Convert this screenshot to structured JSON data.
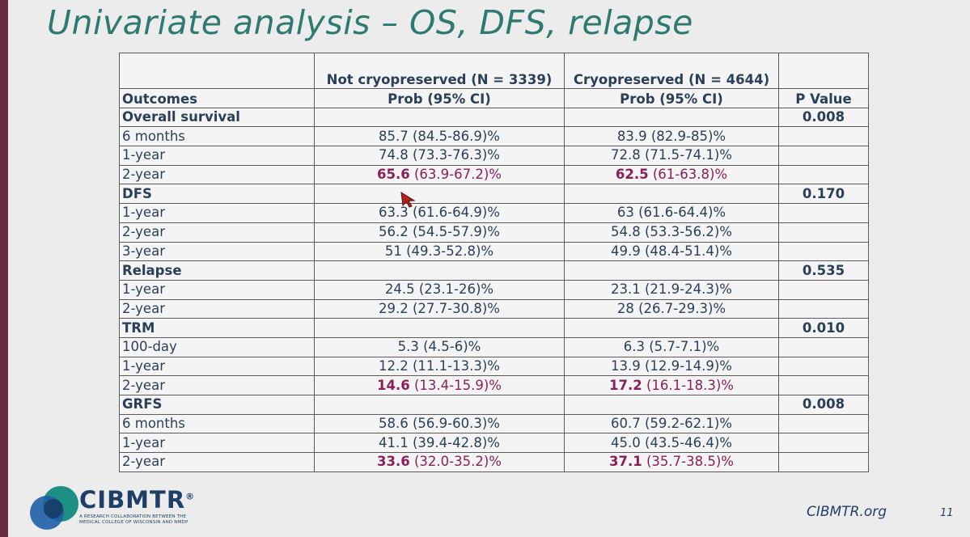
{
  "slide": {
    "title": "Univariate analysis – OS, DFS, relapse",
    "page_number": "11",
    "footer_site": "CIBMTR.org",
    "logo": {
      "brand": "CIBMTR",
      "registered_mark": "®",
      "subtitle": "A RESEARCH COLLABORATION BETWEEN THE MEDICAL COLLEGE OF WISCONSIN AND NMDP"
    }
  },
  "table": {
    "group_headers": [
      "",
      "Not cryopreserved (N = 3339)",
      "Cryopreserved (N = 4644)",
      ""
    ],
    "headers": [
      "Outcomes",
      "Prob (95% CI)",
      "Prob (95% CI)",
      "P Value"
    ],
    "sections": [
      {
        "name": "Overall survival",
        "p_value": "0.008",
        "rows": [
          {
            "label": "6 months",
            "not_cryo": {
              "bold": "",
              "rest": "85.7 (84.5-86.9)%"
            },
            "cryo": {
              "bold": "",
              "rest": "83.9 (82.9-85)%"
            }
          },
          {
            "label": "1-year",
            "not_cryo": {
              "bold": "",
              "rest": "74.8 (73.3-76.3)%"
            },
            "cryo": {
              "bold": "",
              "rest": "72.8 (71.5-74.1)%"
            }
          },
          {
            "label": "2-year",
            "highlight": true,
            "not_cryo": {
              "bold": "65.6",
              "rest": " (63.9-67.2)%"
            },
            "cryo": {
              "bold": "62.5",
              "rest": " (61-63.8)%"
            }
          }
        ]
      },
      {
        "name": "DFS",
        "p_value": "0.170",
        "rows": [
          {
            "label": "1-year",
            "not_cryo": {
              "bold": "",
              "rest": "63.3 (61.6-64.9)%"
            },
            "cryo": {
              "bold": "",
              "rest": "63 (61.6-64.4)%"
            }
          },
          {
            "label": "2-year",
            "not_cryo": {
              "bold": "",
              "rest": "56.2 (54.5-57.9)%"
            },
            "cryo": {
              "bold": "",
              "rest": "54.8 (53.3-56.2)%"
            }
          },
          {
            "label": "3-year",
            "not_cryo": {
              "bold": "",
              "rest": "51 (49.3-52.8)%"
            },
            "cryo": {
              "bold": "",
              "rest": "49.9 (48.4-51.4)%"
            }
          }
        ]
      },
      {
        "name": "Relapse",
        "p_value": "0.535",
        "rows": [
          {
            "label": "1-year",
            "not_cryo": {
              "bold": "",
              "rest": "24.5 (23.1-26)%"
            },
            "cryo": {
              "bold": "",
              "rest": "23.1 (21.9-24.3)%"
            }
          },
          {
            "label": "2-year",
            "not_cryo": {
              "bold": "",
              "rest": "29.2 (27.7-30.8)%"
            },
            "cryo": {
              "bold": "",
              "rest": "28 (26.7-29.3)%"
            }
          }
        ]
      },
      {
        "name": "TRM",
        "p_value": "0.010",
        "rows": [
          {
            "label": "100-day",
            "not_cryo": {
              "bold": "",
              "rest": "5.3 (4.5-6)%"
            },
            "cryo": {
              "bold": "",
              "rest": "6.3 (5.7-7.1)%"
            }
          },
          {
            "label": "1-year",
            "not_cryo": {
              "bold": "",
              "rest": "12.2 (11.1-13.3)%"
            },
            "cryo": {
              "bold": "",
              "rest": "13.9 (12.9-14.9)%"
            }
          },
          {
            "label": "2-year",
            "highlight": true,
            "not_cryo": {
              "bold": "14.6",
              "rest": " (13.4-15.9)%"
            },
            "cryo": {
              "bold": "17.2",
              "rest": " (16.1-18.3)%"
            }
          }
        ]
      },
      {
        "name": "GRFS",
        "p_value": "0.008",
        "rows": [
          {
            "label": "6 months",
            "not_cryo": {
              "bold": "",
              "rest": "58.6 (56.9-60.3)%"
            },
            "cryo": {
              "bold": "",
              "rest": "60.7 (59.2-62.1)%"
            }
          },
          {
            "label": "1-year",
            "not_cryo": {
              "bold": "",
              "rest": "41.1 (39.4-42.8)%"
            },
            "cryo": {
              "bold": "",
              "rest": "45.0 (43.5-46.4)%"
            }
          },
          {
            "label": "2-year",
            "highlight": true,
            "not_cryo": {
              "bold": "33.6",
              "rest": " (32.0-35.2)%"
            },
            "cryo": {
              "bold": "37.1",
              "rest": " (35.7-38.5)%"
            }
          }
        ]
      }
    ]
  },
  "colors": {
    "title": "#2e7a70",
    "section_accent": "#8b1f5a",
    "body_text": "#2b3f58",
    "frame": "#6b2a3e"
  },
  "icons": {
    "cursor": "mouse-pointer-icon",
    "logo": "cibmtr-logo-icon"
  }
}
